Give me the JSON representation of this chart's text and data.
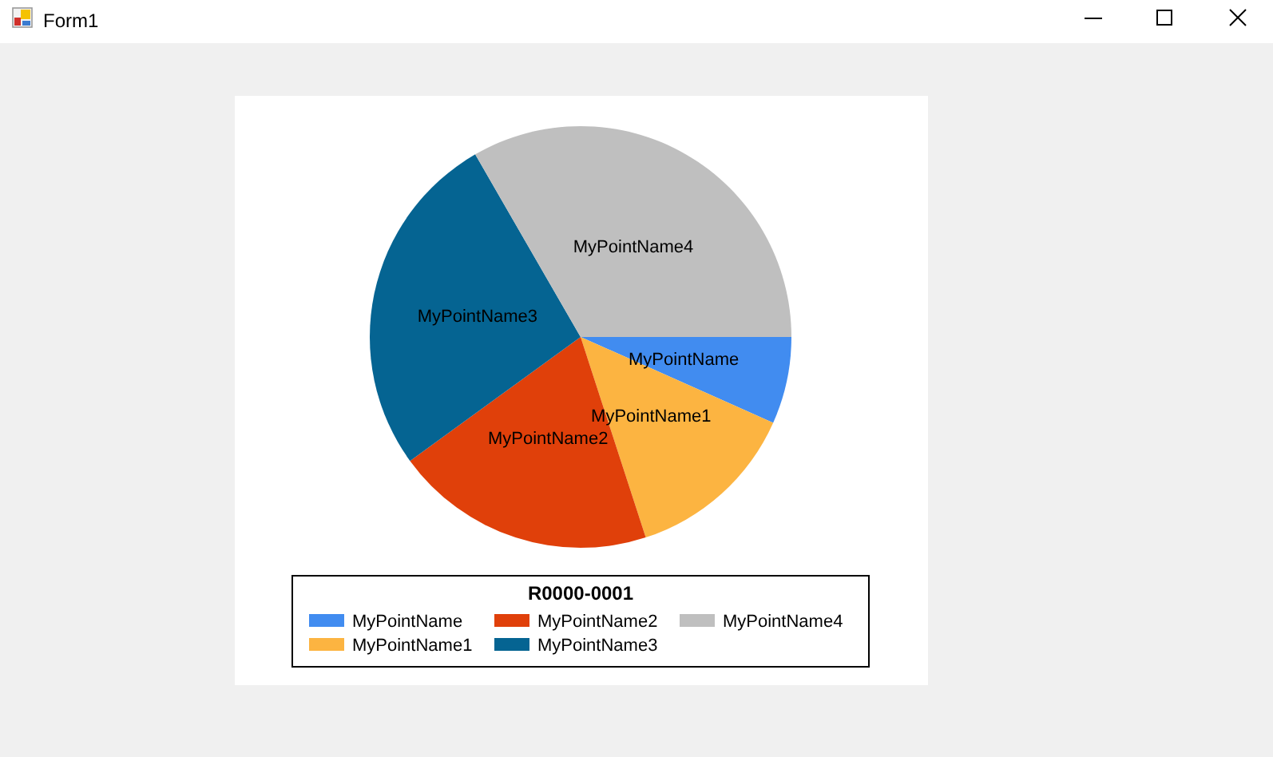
{
  "chart_data": {
    "type": "pie",
    "categories": [
      "MyPointName",
      "MyPointName1",
      "MyPointName2",
      "MyPointName3",
      "MyPointName4"
    ],
    "values": [
      6.67,
      13.33,
      20,
      26.67,
      33.33
    ],
    "colors": [
      "#418cf0",
      "#fcb441",
      "#e0400a",
      "#056492",
      "#bfbfbf"
    ],
    "legend": "bottom",
    "legend_title": "R0000-0001",
    "annotations": [
      "Form1"
    ]
  }
}
